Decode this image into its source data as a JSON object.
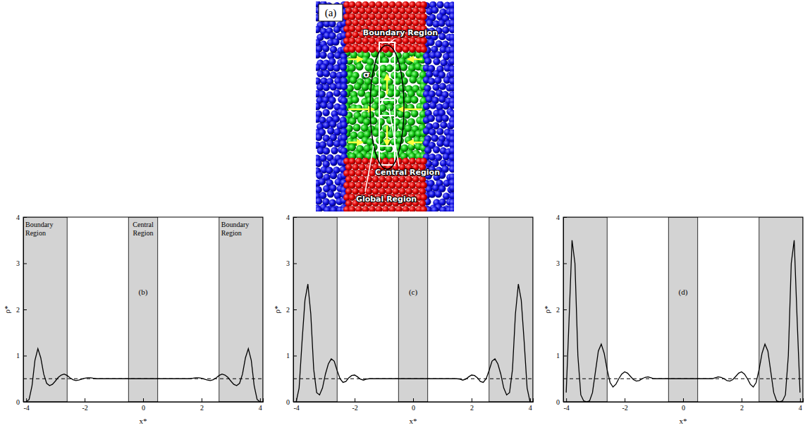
{
  "diagram": {
    "panel_label": "(a)",
    "labels": [
      "Boundary Region",
      "σ",
      "Central Region",
      "Global Region"
    ]
  },
  "chart_data": [
    {
      "type": "line",
      "panel_label": "(b)",
      "xlabel": "x*",
      "ylabel": "ρ*",
      "xlim": [
        -4.1,
        4.1
      ],
      "ylim": [
        0,
        4
      ],
      "xticks": [
        -4,
        -2,
        0,
        2,
        4
      ],
      "yticks": [
        0,
        1,
        2,
        3,
        4
      ],
      "color": "#000000",
      "line_style": "solid",
      "reference": {
        "y": 0.5,
        "line_style": "dashed"
      },
      "regions": [
        {
          "label": "Boundary Region",
          "x": [
            -4.1,
            -2.6
          ]
        },
        {
          "label": "Central Region",
          "x": [
            -0.5,
            0.5
          ]
        },
        {
          "label": "Boundary Region",
          "x": [
            2.6,
            4.1
          ]
        }
      ],
      "x": [
        -4,
        -3.9,
        -3.8,
        -3.7,
        -3.6,
        -3.5,
        -3.4,
        -3.3,
        -3.2,
        -3.1,
        -3,
        -2.9,
        -2.8,
        -2.7,
        -2.6,
        -2.5,
        -2.4,
        -2.3,
        -2.2,
        -2.1,
        -2,
        -1.9,
        -1.8,
        -1.7,
        -1.6,
        -1.5,
        -1.4,
        -1.3,
        -1.2,
        -1.1,
        -1,
        -0.9,
        -0.8,
        -0.7,
        -0.6,
        -0.5,
        -0.4,
        -0.3,
        -0.2,
        -0.1,
        0,
        0.1,
        0.2,
        0.3,
        0.4,
        0.5,
        0.6,
        0.7,
        0.8,
        0.9,
        1,
        1.1,
        1.2,
        1.3,
        1.4,
        1.5,
        1.6,
        1.7,
        1.8,
        1.9,
        2,
        2.1,
        2.2,
        2.3,
        2.4,
        2.5,
        2.6,
        2.7,
        2.8,
        2.9,
        3,
        3.1,
        3.2,
        3.3,
        3.4,
        3.5,
        3.6,
        3.7,
        3.8,
        3.9,
        4
      ],
      "values": [
        0,
        0.05,
        0.35,
        0.9,
        1.15,
        0.95,
        0.6,
        0.4,
        0.35,
        0.38,
        0.45,
        0.53,
        0.58,
        0.6,
        0.57,
        0.52,
        0.48,
        0.46,
        0.47,
        0.49,
        0.51,
        0.52,
        0.52,
        0.51,
        0.5,
        0.5,
        0.5,
        0.5,
        0.5,
        0.5,
        0.5,
        0.5,
        0.5,
        0.5,
        0.5,
        0.5,
        0.5,
        0.5,
        0.5,
        0.5,
        0.5,
        0.5,
        0.5,
        0.5,
        0.5,
        0.5,
        0.5,
        0.5,
        0.5,
        0.5,
        0.5,
        0.5,
        0.5,
        0.5,
        0.5,
        0.5,
        0.5,
        0.51,
        0.52,
        0.52,
        0.51,
        0.49,
        0.47,
        0.46,
        0.48,
        0.52,
        0.57,
        0.6,
        0.58,
        0.53,
        0.45,
        0.38,
        0.35,
        0.4,
        0.6,
        0.95,
        1.15,
        0.9,
        0.35,
        0.05,
        0
      ]
    },
    {
      "type": "line",
      "panel_label": "(c)",
      "xlabel": "x*",
      "ylabel": "ρ*",
      "xlim": [
        -4.1,
        4.1
      ],
      "ylim": [
        0,
        4
      ],
      "xticks": [
        -4,
        -2,
        0,
        2,
        4
      ],
      "yticks": [
        0,
        1,
        2,
        3,
        4
      ],
      "color": "#000000",
      "line_style": "solid",
      "reference": {
        "y": 0.5,
        "line_style": "dashed"
      },
      "regions": [
        {
          "x": [
            -4.1,
            -2.6
          ]
        },
        {
          "x": [
            -0.5,
            0.5
          ]
        },
        {
          "x": [
            2.6,
            4.1
          ]
        }
      ],
      "x": [
        -4,
        -3.9,
        -3.8,
        -3.7,
        -3.6,
        -3.5,
        -3.4,
        -3.3,
        -3.2,
        -3.1,
        -3,
        -2.9,
        -2.8,
        -2.7,
        -2.6,
        -2.5,
        -2.4,
        -2.3,
        -2.2,
        -2.1,
        -2,
        -1.9,
        -1.8,
        -1.7,
        -1.6,
        -1.5,
        -1.4,
        -1.3,
        -1.2,
        -1.1,
        -1,
        -0.9,
        -0.8,
        -0.7,
        -0.6,
        -0.5,
        -0.4,
        -0.3,
        -0.2,
        -0.1,
        0,
        0.1,
        0.2,
        0.3,
        0.4,
        0.5,
        0.6,
        0.7,
        0.8,
        0.9,
        1,
        1.1,
        1.2,
        1.3,
        1.4,
        1.5,
        1.6,
        1.7,
        1.8,
        1.9,
        2,
        2.1,
        2.2,
        2.3,
        2.4,
        2.5,
        2.6,
        2.7,
        2.8,
        2.9,
        3,
        3.1,
        3.2,
        3.3,
        3.4,
        3.5,
        3.6,
        3.7,
        3.8,
        3.9,
        4
      ],
      "values": [
        0,
        0.3,
        1.3,
        2.2,
        2.55,
        1.9,
        0.7,
        0.2,
        0.15,
        0.3,
        0.6,
        0.82,
        0.93,
        0.88,
        0.68,
        0.5,
        0.42,
        0.44,
        0.52,
        0.57,
        0.58,
        0.54,
        0.49,
        0.47,
        0.49,
        0.5,
        0.5,
        0.5,
        0.5,
        0.5,
        0.5,
        0.5,
        0.5,
        0.5,
        0.5,
        0.5,
        0.5,
        0.5,
        0.5,
        0.5,
        0.5,
        0.5,
        0.5,
        0.5,
        0.5,
        0.5,
        0.5,
        0.5,
        0.5,
        0.5,
        0.5,
        0.5,
        0.5,
        0.5,
        0.5,
        0.5,
        0.49,
        0.47,
        0.49,
        0.54,
        0.58,
        0.57,
        0.52,
        0.44,
        0.42,
        0.5,
        0.68,
        0.88,
        0.93,
        0.82,
        0.6,
        0.3,
        0.15,
        0.2,
        0.7,
        1.9,
        2.55,
        2.2,
        1.3,
        0.3,
        0
      ]
    },
    {
      "type": "line",
      "panel_label": "(d)",
      "xlabel": "x*",
      "ylabel": "ρ*",
      "xlim": [
        -4.1,
        4.1
      ],
      "ylim": [
        0,
        4
      ],
      "xticks": [
        -4,
        -2,
        0,
        2,
        4
      ],
      "yticks": [
        0,
        1,
        2,
        3,
        4
      ],
      "color": "#000000",
      "line_style": "solid",
      "reference": {
        "y": 0.5,
        "line_style": "dashed"
      },
      "regions": [
        {
          "x": [
            -4.1,
            -2.6
          ]
        },
        {
          "x": [
            -0.5,
            0.5
          ]
        },
        {
          "x": [
            2.6,
            4.1
          ]
        }
      ],
      "x": [
        -4,
        -3.9,
        -3.8,
        -3.7,
        -3.6,
        -3.5,
        -3.4,
        -3.3,
        -3.2,
        -3.1,
        -3,
        -2.9,
        -2.8,
        -2.7,
        -2.6,
        -2.5,
        -2.4,
        -2.3,
        -2.2,
        -2.1,
        -2,
        -1.9,
        -1.8,
        -1.7,
        -1.6,
        -1.5,
        -1.4,
        -1.3,
        -1.2,
        -1.1,
        -1,
        -0.9,
        -0.8,
        -0.7,
        -0.6,
        -0.5,
        -0.4,
        -0.3,
        -0.2,
        -0.1,
        0,
        0.1,
        0.2,
        0.3,
        0.4,
        0.5,
        0.6,
        0.7,
        0.8,
        0.9,
        1,
        1.1,
        1.2,
        1.3,
        1.4,
        1.5,
        1.6,
        1.7,
        1.8,
        1.9,
        2,
        2.1,
        2.2,
        2.3,
        2.4,
        2.5,
        2.6,
        2.7,
        2.8,
        2.9,
        3,
        3.1,
        3.2,
        3.3,
        3.4,
        3.5,
        3.6,
        3.7,
        3.8,
        3.9,
        4
      ],
      "values": [
        0.2,
        1.8,
        3.5,
        3,
        1,
        0.15,
        0.02,
        0,
        0.02,
        0.2,
        0.65,
        1.1,
        1.25,
        1.05,
        0.7,
        0.42,
        0.32,
        0.38,
        0.5,
        0.6,
        0.65,
        0.62,
        0.55,
        0.48,
        0.45,
        0.46,
        0.5,
        0.53,
        0.54,
        0.52,
        0.5,
        0.5,
        0.5,
        0.5,
        0.5,
        0.5,
        0.5,
        0.5,
        0.5,
        0.5,
        0.5,
        0.5,
        0.5,
        0.5,
        0.5,
        0.5,
        0.5,
        0.5,
        0.5,
        0.5,
        0.5,
        0.52,
        0.54,
        0.53,
        0.5,
        0.46,
        0.45,
        0.48,
        0.55,
        0.62,
        0.65,
        0.6,
        0.5,
        0.38,
        0.32,
        0.42,
        0.7,
        1.05,
        1.25,
        1.1,
        0.65,
        0.2,
        0.02,
        0,
        0.02,
        0.15,
        1,
        3,
        3.5,
        1.8,
        0.2
      ]
    }
  ]
}
